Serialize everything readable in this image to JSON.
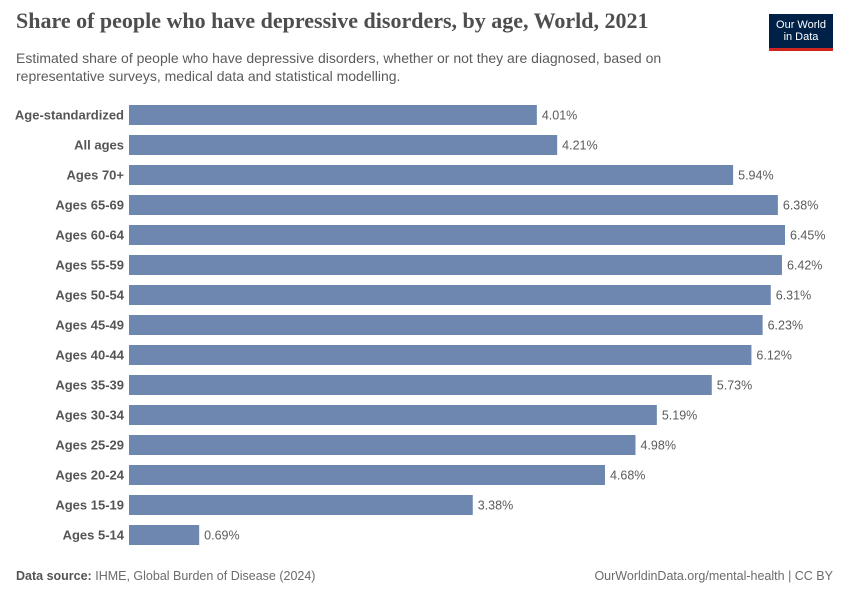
{
  "chart_data": {
    "type": "bar",
    "orientation": "horizontal",
    "title": "Share of people who have depressive disorders, by age, World, 2021",
    "subtitle": "Estimated share of people who have depressive disorders, whether or not they are diagnosed, based on representative surveys, medical data and statistical modelling.",
    "logo": [
      "Our World",
      "in Data"
    ],
    "source_label": "Data source:",
    "source": "IHME, Global Burden of Disease (2024)",
    "url": "OurWorldinData.org/mental-health | CC BY",
    "color": "#6d87b0",
    "categories": [
      "Age-standardized",
      "All ages",
      "Ages 70+",
      "Ages 65-69",
      "Ages 60-64",
      "Ages 55-59",
      "Ages 50-54",
      "Ages 45-49",
      "Ages 40-44",
      "Ages 35-39",
      "Ages 30-34",
      "Ages 25-29",
      "Ages 20-24",
      "Ages 15-19",
      "Ages 5-14"
    ],
    "values": [
      4.01,
      4.21,
      5.94,
      6.38,
      6.45,
      6.42,
      6.31,
      6.23,
      6.12,
      5.73,
      5.19,
      4.98,
      4.68,
      3.38,
      0.69
    ],
    "value_labels": [
      "4.01%",
      "4.21%",
      "5.94%",
      "6.38%",
      "6.45%",
      "6.42%",
      "6.31%",
      "6.23%",
      "6.12%",
      "5.73%",
      "5.19%",
      "4.98%",
      "4.68%",
      "3.38%",
      "0.69%"
    ]
  }
}
